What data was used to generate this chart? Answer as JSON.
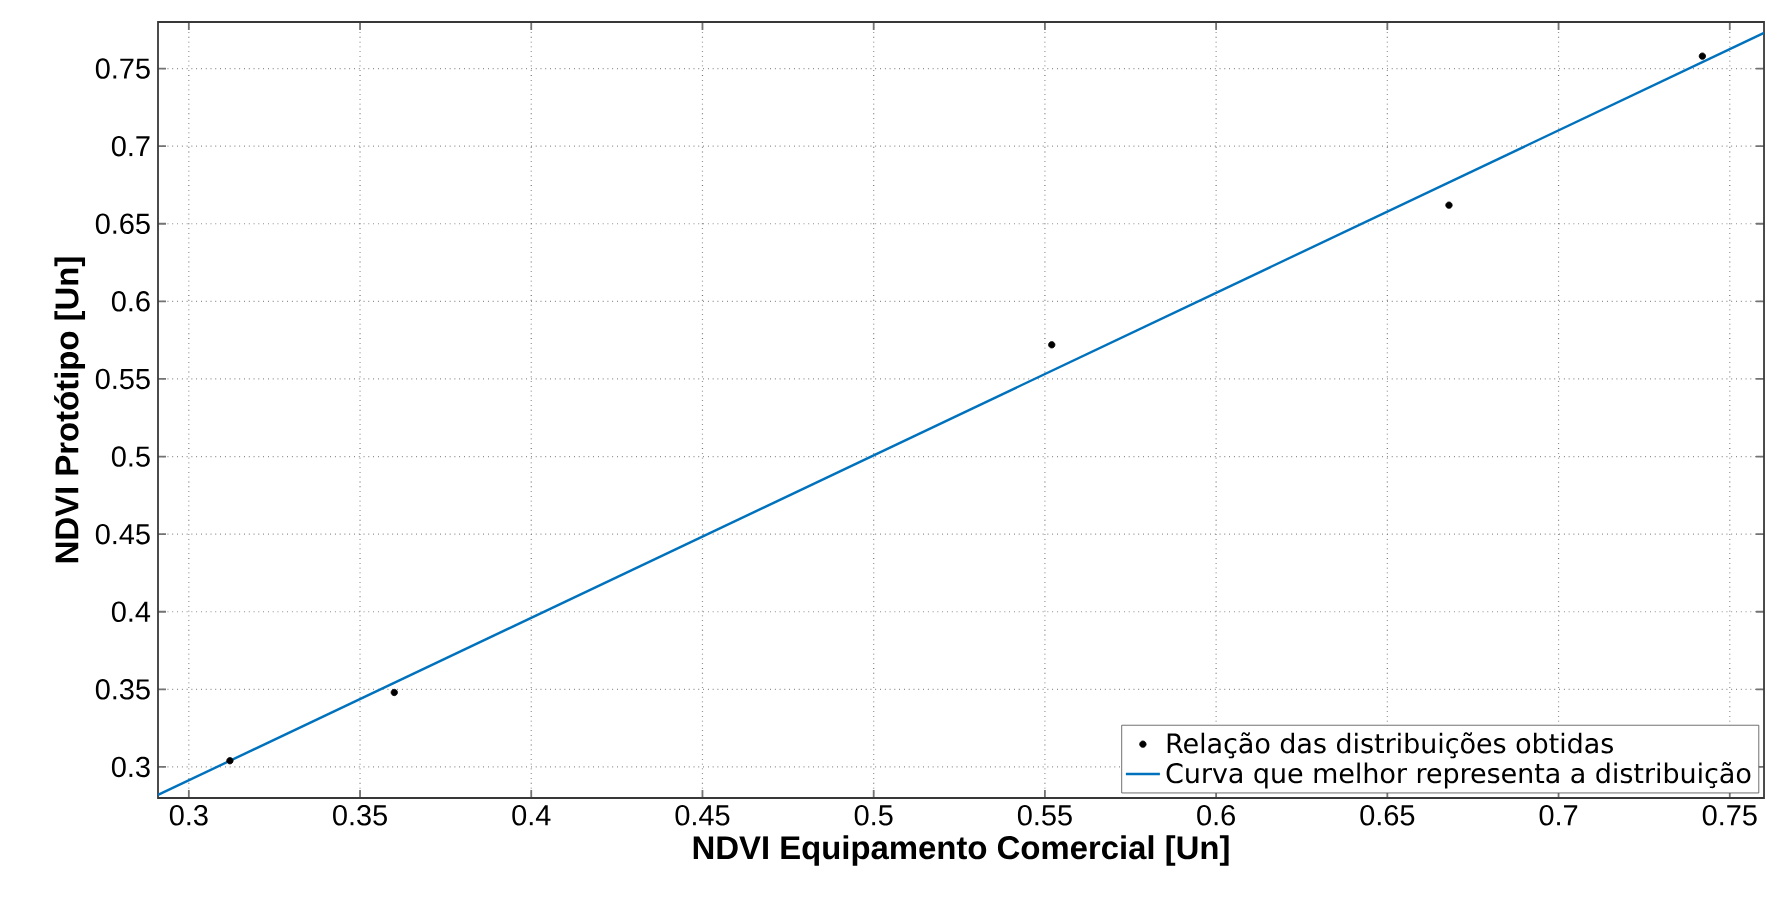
{
  "chart_data": {
    "type": "scatter",
    "xlabel": "NDVI Equipamento Comercial [Un]",
    "ylabel": "NDVI Protótipo [Un]",
    "xlim": [
      0.291,
      0.76
    ],
    "ylim": [
      0.28,
      0.78
    ],
    "xticks": [
      0.3,
      0.35,
      0.4,
      0.45,
      0.5,
      0.55,
      0.6,
      0.65,
      0.7,
      0.75
    ],
    "yticks": [
      0.3,
      0.35,
      0.4,
      0.45,
      0.5,
      0.55,
      0.6,
      0.65,
      0.7,
      0.75
    ],
    "grid": true,
    "legend": "bottom right",
    "series": [
      {
        "name": "Relação das distribuições obtidas",
        "marker": "circle",
        "color": "#000000",
        "x": [
          0.312,
          0.36,
          0.552,
          0.668,
          0.742
        ],
        "values": [
          0.304,
          0.348,
          0.572,
          0.662,
          0.758
        ]
      },
      {
        "name": "Curva que melhor representa a distribuição",
        "type": "line",
        "marker": "none",
        "line_style": "solid",
        "color": "#0072bd",
        "x": [
          0.291,
          0.76
        ],
        "values": [
          0.282,
          0.773
        ]
      }
    ]
  }
}
